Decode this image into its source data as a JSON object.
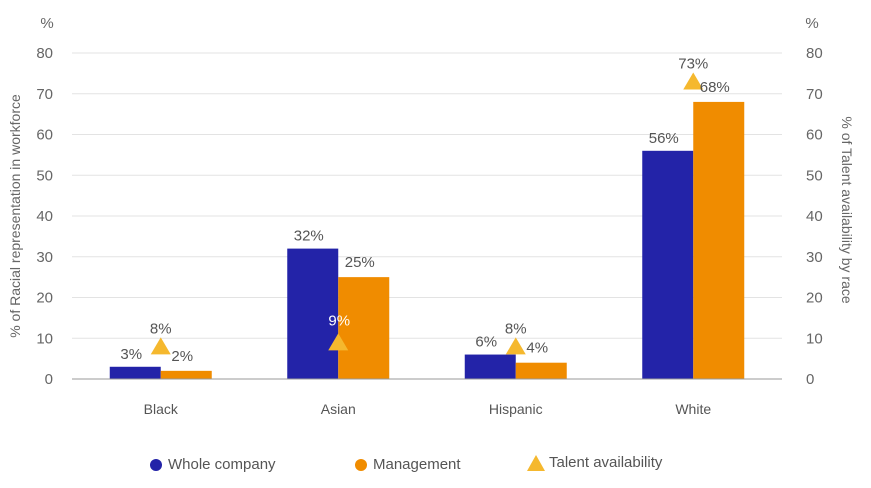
{
  "chart_data": {
    "type": "bar",
    "categories": [
      "Black",
      "Asian",
      "Hispanic",
      "White"
    ],
    "series": [
      {
        "name": "Whole company",
        "kind": "bar",
        "color": "#2323a8",
        "values": [
          3,
          32,
          6,
          56
        ],
        "labels": [
          "3%",
          "32%",
          "6%",
          "56%"
        ]
      },
      {
        "name": "Management",
        "kind": "bar",
        "color": "#f08c00",
        "values": [
          2,
          25,
          4,
          68
        ],
        "labels": [
          "2%",
          "25%",
          "4%",
          "68%"
        ]
      },
      {
        "name": "Talent availability",
        "kind": "marker",
        "color": "#f5b82e",
        "values": [
          8,
          9,
          8,
          73
        ],
        "labels": [
          "8%",
          "9%",
          "8%",
          "73%"
        ]
      }
    ],
    "ylabel_left": "% of Racial representation in workforce",
    "ylabel_right": "% of Talent availability by race",
    "unit_left": "%",
    "unit_right": "%",
    "ylim": [
      0,
      80
    ],
    "yticks": [
      0,
      10,
      20,
      30,
      40,
      50,
      60,
      70,
      80
    ],
    "grid": true,
    "legend_position": "bottom"
  }
}
